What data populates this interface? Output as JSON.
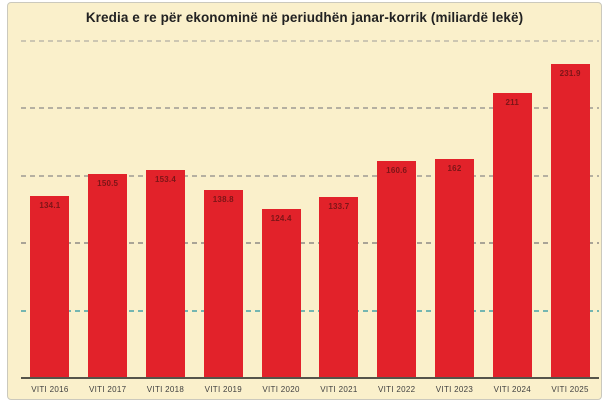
{
  "chart_data": {
    "type": "bar",
    "title": "Kredia e re për ekonominë në periudhën janar-korrik (miliardë lekë)",
    "categories": [
      "VITI 2016",
      "VITI 2017",
      "VITI 2018",
      "VITI 2019",
      "VITI 2020",
      "VITI 2021",
      "VITI 2022",
      "VITI 2023",
      "VITI 2024",
      "VITI 2025"
    ],
    "values": [
      134.1,
      150.5,
      153.4,
      138.8,
      124.4,
      133.7,
      160.6,
      162,
      211,
      231.9
    ],
    "value_labels": [
      "134.1",
      "150.5",
      "153.4",
      "138.8",
      "124.4",
      "133.7",
      "160.6",
      "162",
      "211",
      "231.9"
    ],
    "xlabel": "",
    "ylabel": "",
    "ylim": [
      0,
      250
    ],
    "grid": true,
    "gridlines": [
      {
        "value": 250,
        "color": "#ccc6b2",
        "style": "dashed"
      },
      {
        "value": 200,
        "color": "#b5b0a1",
        "style": "dashed"
      },
      {
        "value": 150,
        "color": "#b5b0a1",
        "style": "dashed"
      },
      {
        "value": 100,
        "color": "#a9a496",
        "style": "dashed"
      },
      {
        "value": 50,
        "color": "#74b6b1",
        "style": "dashed"
      }
    ],
    "legend_position": "none",
    "colors": {
      "bar": "#e2222a",
      "value_label": "#7d1517",
      "title": "#222222",
      "axis_line": "#55544a",
      "tick_label": "#3f3f3f",
      "panel_background": "#faf0cb",
      "panel_border": "#cbc9bd",
      "page_background": "#ffffff"
    }
  }
}
